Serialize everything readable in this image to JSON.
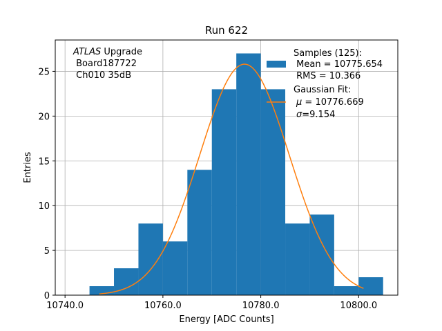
{
  "chart_data": {
    "type": "bar",
    "title": "Run 622",
    "xlabel": "Energy [ADC Counts]",
    "ylabel": "Entries",
    "xlim": [
      10738,
      10808
    ],
    "ylim": [
      0,
      28.5
    ],
    "grid": true,
    "x_ticks": [
      10740.0,
      10760.0,
      10780.0,
      10800.0
    ],
    "x_tick_labels": [
      "10740.0",
      "10760.0",
      "10780.0",
      "10800.0"
    ],
    "y_ticks": [
      0,
      5,
      10,
      15,
      20,
      25
    ],
    "y_tick_labels": [
      "0",
      "5",
      "10",
      "15",
      "20",
      "25"
    ],
    "bin_edges": [
      10745,
      10750,
      10755,
      10760,
      10765,
      10770,
      10775,
      10780,
      10785,
      10790,
      10795,
      10800,
      10805
    ],
    "counts": [
      1,
      3,
      8,
      6,
      14,
      23,
      27,
      23,
      8,
      9,
      1,
      2
    ],
    "bar_color": "#1f77b4",
    "fit": {
      "name": "Gaussian Fit",
      "color": "#ff7f0e",
      "mu": 10776.669,
      "sigma": 9.154,
      "amplitude": 25.8,
      "x_range": [
        10747,
        10801
      ]
    },
    "annotation": {
      "line1_italic": "ATLAS",
      "line1_rest": " Upgrade",
      "line2": " Board187722",
      "line3": " Ch010 35dB"
    },
    "legend": {
      "location": "upper right",
      "samples": {
        "line1": "Samples (125):",
        "line2": " Mean = 10775.654",
        "line3": " RMS = 10.366"
      },
      "fit": {
        "line1": "Gaussian Fit:",
        "line2_symbol": "μ",
        "line2_rest": " = 10776.669",
        "line3_symbol": "σ",
        "line3_rest": "=9.154"
      }
    }
  }
}
